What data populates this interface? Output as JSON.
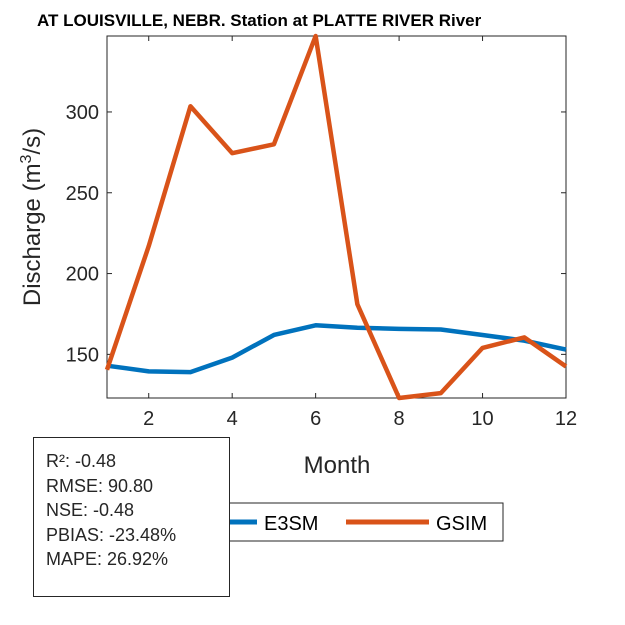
{
  "chart_data": {
    "type": "line",
    "title": "AT LOUISVILLE, NEBR.  Station at  PLATTE RIVER  River",
    "xlabel": "Month",
    "ylabel": "Discharge (m3/s)",
    "ylabel_parts": {
      "main": "Discharge (m",
      "sup": "3",
      "end": "/s)"
    },
    "xlim": [
      1,
      12
    ],
    "ylim": [
      123,
      347
    ],
    "xticks": [
      2,
      4,
      6,
      8,
      10,
      12
    ],
    "yticks": [
      150,
      200,
      250,
      300
    ],
    "grid": false,
    "legend_placement": "bottom-center",
    "x": [
      1,
      2,
      3,
      4,
      5,
      6,
      7,
      8,
      9,
      10,
      11,
      12
    ],
    "series": [
      {
        "name": "E3SM",
        "color": "#0072BD",
        "values": [
          143,
          139.5,
          139,
          148,
          162,
          168,
          166.5,
          165.8,
          165.4,
          162,
          158.5,
          153
        ]
      },
      {
        "name": "GSIM",
        "color": "#D95319",
        "values": [
          140.5,
          217,
          303.5,
          274.5,
          280,
          347,
          181,
          123,
          126,
          154,
          160.5,
          142.5
        ]
      }
    ]
  },
  "stats": [
    "R²: -0.48",
    "RMSE: 90.80",
    "NSE: -0.48",
    "PBIAS: -23.48%",
    "MAPE: 26.92%"
  ]
}
